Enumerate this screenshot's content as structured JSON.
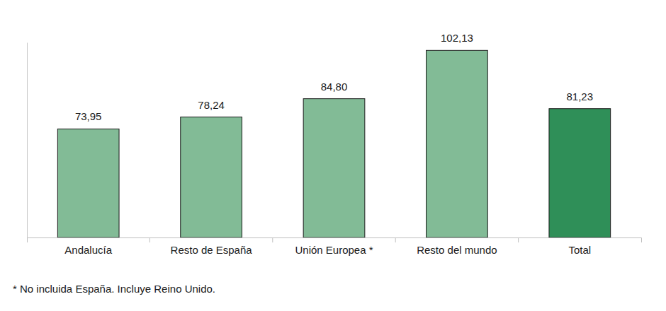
{
  "chart_data": {
    "type": "bar",
    "categories": [
      "Andalucía",
      "Resto de España",
      "Unión Europea *",
      "Resto del mundo",
      "Total"
    ],
    "values": [
      73.95,
      78.24,
      84.8,
      102.13,
      81.23
    ],
    "value_labels": [
      "73,95",
      "78,24",
      "84,80",
      "102,13",
      "81,23"
    ],
    "colors": [
      "#82bb96",
      "#82bb96",
      "#82bb96",
      "#82bb96",
      "#2f8f58"
    ],
    "ylim": [
      35,
      105
    ],
    "yticks": [],
    "tick_labels": "x",
    "data_labels": true,
    "annotation": "* No incluida España. Incluye Reino Unido."
  }
}
